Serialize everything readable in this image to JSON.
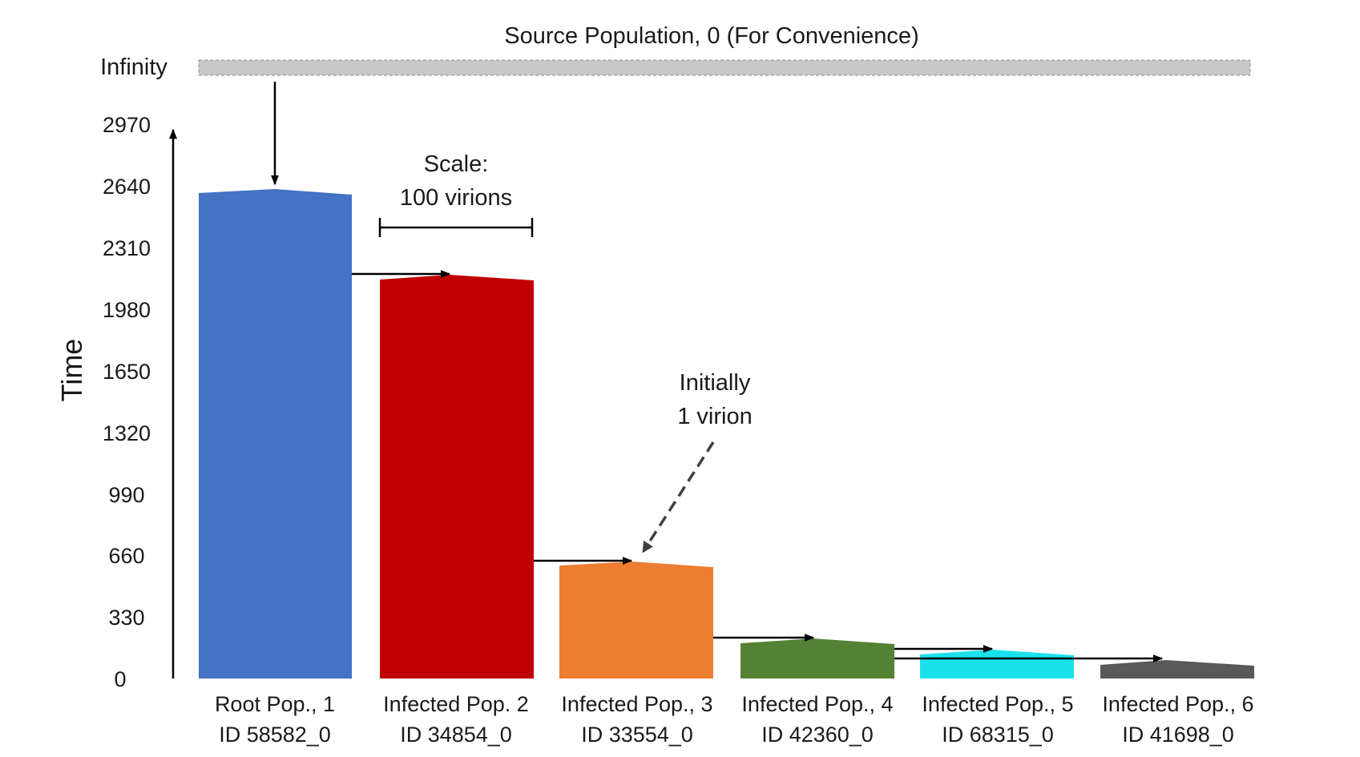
{
  "top_label": "Source Population, 0 (For Convenience)",
  "infinity_label": "Infinity",
  "y_axis": {
    "title": "Time",
    "ticks": [
      "0",
      "330",
      "660",
      "990",
      "1320",
      "1650",
      "1980",
      "2310",
      "2640",
      "2970"
    ]
  },
  "scale_annotation": {
    "line1": "Scale:",
    "line2": "100 virions"
  },
  "initial_annotation": {
    "line1": "Initially",
    "line2": "1 virion"
  },
  "populations": [
    {
      "line1": "Root Pop., 1",
      "line2": "ID 58582_0",
      "color": "#4472C4"
    },
    {
      "line1": "Infected Pop. 2",
      "line2": "ID 34854_0",
      "color": "#C00000"
    },
    {
      "line1": "Infected Pop., 3",
      "line2": "ID 33554_0",
      "color": "#ED7D31"
    },
    {
      "line1": "Infected Pop., 4",
      "line2": "ID 42360_0",
      "color": "#548235"
    },
    {
      "line1": "Infected Pop., 5",
      "line2": "ID 68315_0",
      "color": "#1BE1EC"
    },
    {
      "line1": "Infected Pop., 6",
      "line2": "ID 41698_0",
      "color": "#595959"
    }
  ],
  "source_bar_color": "#C8C8C8"
}
